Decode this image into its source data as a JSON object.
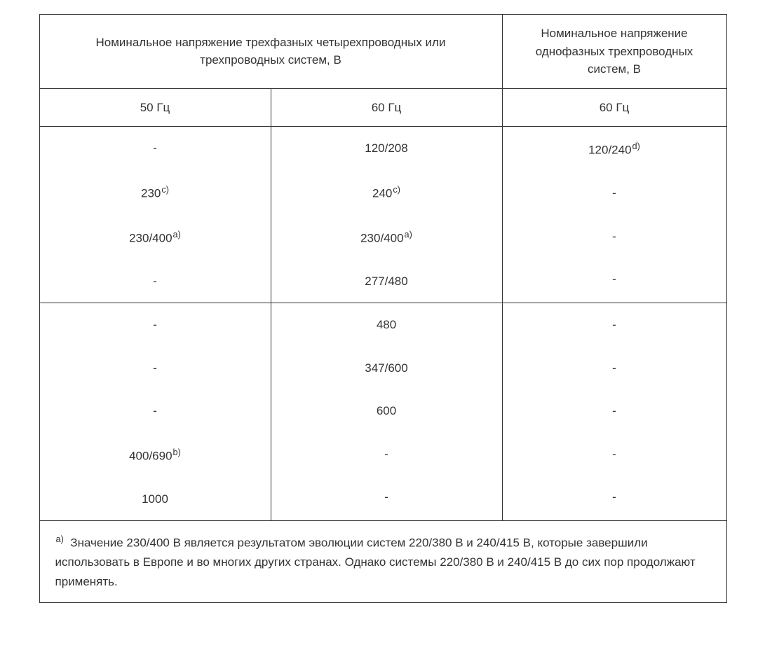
{
  "table": {
    "headers": {
      "three_phase": "Номинальное напряжение трехфазных четырехпроводных или трехпроводных систем, В",
      "single_phase": "Номинальное напряжение однофазных трехпроводных систем, В"
    },
    "sub_headers": {
      "col1": "50 Гц",
      "col2": "60 Гц",
      "col3": "60 Гц"
    },
    "group1": {
      "col1": [
        "-",
        "230",
        "230/400",
        "-"
      ],
      "col1_sup": [
        "",
        "c)",
        "a)",
        ""
      ],
      "col2": [
        "120/208",
        "240",
        "230/400",
        "277/480"
      ],
      "col2_sup": [
        "",
        "c)",
        "a)",
        ""
      ],
      "col3": [
        "120/240",
        "-",
        "-",
        "-"
      ],
      "col3_sup": [
        "d)",
        "",
        "",
        ""
      ]
    },
    "group2": {
      "col1": [
        "-",
        "-",
        "-",
        "400/690",
        "1000"
      ],
      "col1_sup": [
        "",
        "",
        "",
        "b)",
        ""
      ],
      "col2": [
        "480",
        "347/600",
        "600",
        "-",
        "-"
      ],
      "col2_sup": [
        "",
        "",
        "",
        "",
        ""
      ],
      "col3": [
        "-",
        "-",
        "-",
        "-",
        "-"
      ],
      "col3_sup": [
        "",
        "",
        "",
        "",
        ""
      ]
    },
    "footnote": {
      "marker": "a)",
      "text": "Значение 230/400 В является результатом эволюции систем 220/380 В и 240/415 В, которые завершили использовать в Европе и во многих других странах. Однако системы 220/380 В и 240/415 В до сих пор продолжают применять."
    }
  },
  "colors": {
    "border": "#333333",
    "text": "#333333",
    "background": "#ffffff"
  },
  "fonts": {
    "body_size": 17,
    "sup_scale": 0.75
  }
}
